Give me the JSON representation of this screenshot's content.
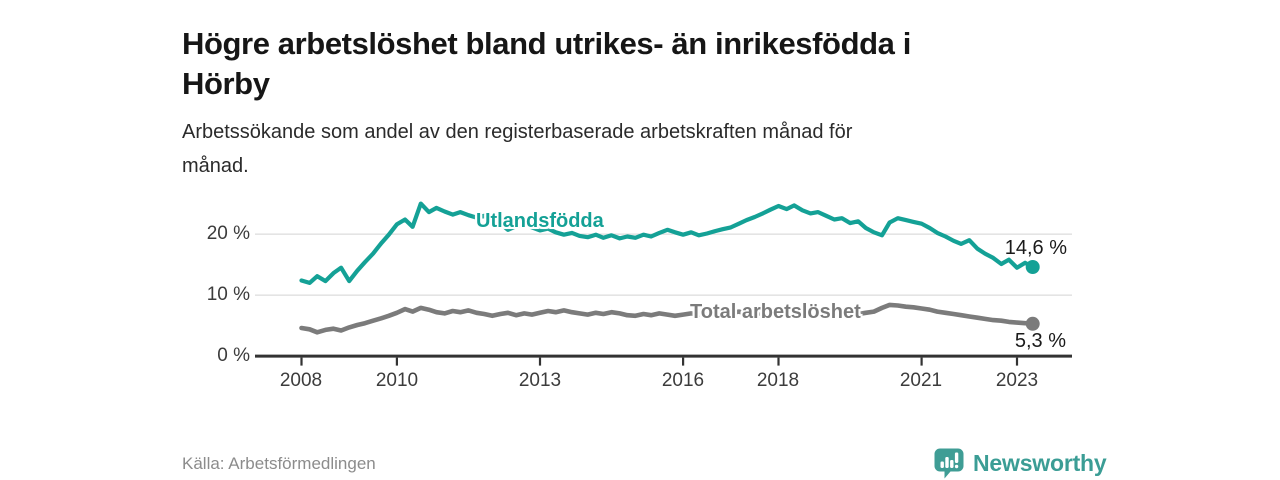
{
  "chart_data": {
    "type": "line",
    "title": "Högre arbetslöshet bland utrikes- än inrikesfödda i Hörby",
    "title_lines": [
      "Högre arbetslöshet bland utrikes- än inrikesfödda i",
      "Hörby"
    ],
    "subtitle": "Arbetssökande som andel av den registerbaserade arbetskraften månad för månad.",
    "subtitle_lines": [
      "Arbetssökande som andel av den registerbaserade arbetskraften månad för",
      "månad."
    ],
    "unit": "%",
    "grid": "horizontal",
    "legend_position": "inline-line-labels",
    "xlim": [
      2007.0,
      2024.2
    ],
    "ylim": [
      0,
      27
    ],
    "x_ticks": {
      "values": [
        2008,
        2010,
        2013,
        2016,
        2018,
        2021,
        2023
      ],
      "labels": [
        "2008",
        "2010",
        "2013",
        "2016",
        "2018",
        "2021",
        "2023"
      ]
    },
    "y_ticks": {
      "values": [
        0,
        10,
        20
      ],
      "labels": [
        "0 %",
        "10 %",
        "20 %"
      ]
    },
    "x": [
      2008,
      2008.17,
      2008.33,
      2008.5,
      2008.67,
      2008.83,
      2009,
      2009.17,
      2009.33,
      2009.5,
      2009.67,
      2009.83,
      2010,
      2010.17,
      2010.33,
      2010.5,
      2010.67,
      2010.83,
      2011,
      2011.17,
      2011.33,
      2011.5,
      2011.67,
      2011.83,
      2012,
      2012.17,
      2012.33,
      2012.5,
      2012.67,
      2012.83,
      2013,
      2013.17,
      2013.33,
      2013.5,
      2013.67,
      2013.83,
      2014,
      2014.17,
      2014.33,
      2014.5,
      2014.67,
      2014.83,
      2015,
      2015.17,
      2015.33,
      2015.5,
      2015.67,
      2015.83,
      2016,
      2016.17,
      2016.33,
      2016.5,
      2016.67,
      2016.83,
      2017,
      2017.17,
      2017.33,
      2017.5,
      2017.67,
      2017.83,
      2018,
      2018.17,
      2018.33,
      2018.5,
      2018.67,
      2018.83,
      2019,
      2019.17,
      2019.33,
      2019.5,
      2019.67,
      2019.83,
      2020,
      2020.17,
      2020.33,
      2020.5,
      2020.67,
      2020.83,
      2021,
      2021.17,
      2021.33,
      2021.5,
      2021.67,
      2021.83,
      2022,
      2022.17,
      2022.33,
      2022.5,
      2022.67,
      2022.83,
      2023,
      2023.17,
      2023.33
    ],
    "series": [
      {
        "id": "utlandsfodda",
        "name": "Utlandsfödda",
        "line_label": "Utlandsfödda",
        "color": "#14a196",
        "end_label": "14,6 %",
        "end_value": 14.6,
        "values": [
          12.4,
          12.0,
          13.1,
          12.3,
          13.6,
          14.5,
          12.3,
          14.0,
          15.4,
          16.8,
          18.5,
          19.9,
          21.6,
          22.4,
          21.2,
          25.0,
          23.6,
          24.3,
          23.7,
          23.2,
          23.6,
          23.1,
          22.7,
          23.0,
          22.4,
          21.7,
          20.7,
          21.3,
          21.6,
          21.1,
          20.6,
          20.9,
          20.3,
          19.9,
          20.2,
          19.7,
          19.5,
          19.9,
          19.4,
          19.8,
          19.3,
          19.6,
          19.4,
          19.9,
          19.6,
          20.2,
          20.7,
          20.3,
          19.9,
          20.3,
          19.8,
          20.1,
          20.5,
          20.8,
          21.1,
          21.7,
          22.3,
          22.8,
          23.4,
          24.0,
          24.6,
          24.1,
          24.7,
          23.9,
          23.4,
          23.6,
          23.0,
          22.4,
          22.6,
          21.8,
          22.1,
          21.0,
          20.3,
          19.8,
          21.9,
          22.6,
          22.3,
          22.0,
          21.7,
          21.0,
          20.2,
          19.6,
          18.9,
          18.4,
          19.0,
          17.6,
          16.8,
          16.1,
          15.1,
          15.8,
          14.5,
          15.3,
          14.6
        ]
      },
      {
        "id": "total-arbetsloshet",
        "name": "Total arbetslöshet",
        "line_label": "Total arbetslöshet",
        "color": "#7b7b7b",
        "end_label": "5,3 %",
        "end_value": 5.3,
        "values": [
          4.6,
          4.4,
          3.9,
          4.3,
          4.5,
          4.2,
          4.7,
          5.1,
          5.4,
          5.8,
          6.2,
          6.6,
          7.1,
          7.7,
          7.3,
          7.9,
          7.6,
          7.2,
          7.0,
          7.4,
          7.2,
          7.5,
          7.1,
          6.9,
          6.6,
          6.9,
          7.1,
          6.7,
          7.0,
          6.8,
          7.1,
          7.4,
          7.2,
          7.5,
          7.2,
          7.0,
          6.8,
          7.1,
          6.9,
          7.2,
          7.0,
          6.7,
          6.6,
          6.9,
          6.7,
          7.0,
          6.8,
          6.6,
          6.8,
          7.0,
          6.8,
          7.0,
          7.2,
          6.9,
          7.1,
          7.3,
          7.0,
          7.2,
          6.9,
          7.1,
          6.9,
          7.1,
          6.8,
          7.0,
          6.7,
          6.9,
          6.6,
          6.8,
          6.5,
          6.7,
          6.9,
          7.1,
          7.3,
          7.9,
          8.4,
          8.3,
          8.1,
          8.0,
          7.8,
          7.6,
          7.3,
          7.1,
          6.9,
          6.7,
          6.5,
          6.3,
          6.1,
          5.9,
          5.8,
          5.6,
          5.5,
          5.4,
          5.3
        ]
      }
    ],
    "axis_color": "#333333",
    "gridline_color": "#dcdcdc"
  },
  "footer": {
    "source": "Källa: Arbetsförmedlingen",
    "logo_text": "Newsworthy",
    "brand_color": "#3b9d95",
    "logo_icon": "bar-chart-speech-bubble-icon"
  }
}
